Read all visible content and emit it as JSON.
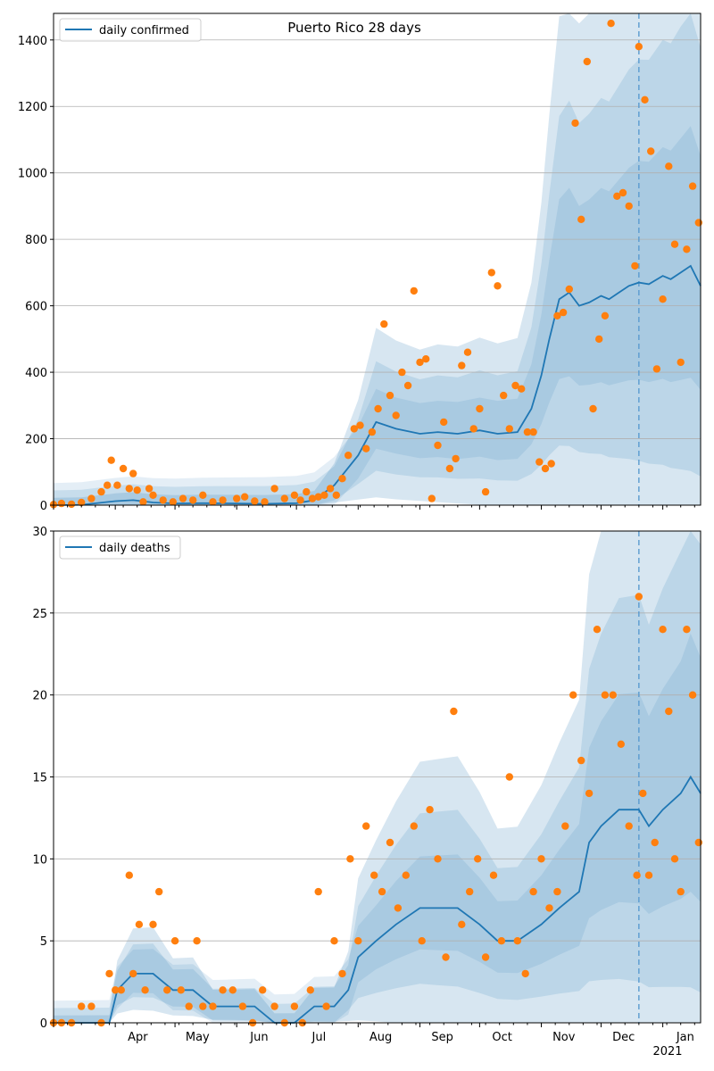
{
  "figure": {
    "title": "Puerto Rico 28 days"
  },
  "chart_data": [
    {
      "type": "line",
      "title": "Puerto Rico 28 days",
      "xlabel": "",
      "ylabel": "",
      "x_range": [
        "2020-03-01",
        "2021-01-20"
      ],
      "ylim": [
        0,
        1480
      ],
      "yticks": [
        0,
        200,
        400,
        600,
        800,
        1000,
        1200,
        1400
      ],
      "grid": "horizontal",
      "legend_position": "top-left",
      "forecast_start": "2020-12-20",
      "series": [
        {
          "name": "daily confirmed",
          "style": "line",
          "color": "#1f77b4",
          "x": [
            "2020-03-01",
            "2020-03-15",
            "2020-04-01",
            "2020-04-10",
            "2020-04-20",
            "2020-05-01",
            "2020-05-15",
            "2020-06-01",
            "2020-06-15",
            "2020-07-01",
            "2020-07-10",
            "2020-07-20",
            "2020-08-01",
            "2020-08-10",
            "2020-08-20",
            "2020-09-01",
            "2020-09-10",
            "2020-09-20",
            "2020-10-01",
            "2020-10-10",
            "2020-10-20",
            "2020-10-27",
            "2020-11-01",
            "2020-11-05",
            "2020-11-10",
            "2020-11-15",
            "2020-11-20",
            "2020-11-25",
            "2020-12-01",
            "2020-12-05",
            "2020-12-10",
            "2020-12-15",
            "2020-12-20",
            "2020-12-25",
            "2021-01-01",
            "2021-01-05",
            "2021-01-10",
            "2021-01-15",
            "2021-01-20"
          ],
          "values": [
            0,
            1,
            12,
            15,
            8,
            5,
            6,
            5,
            4,
            6,
            15,
            60,
            150,
            250,
            230,
            215,
            220,
            215,
            225,
            215,
            220,
            290,
            390,
            500,
            620,
            640,
            600,
            610,
            630,
            620,
            640,
            660,
            670,
            665,
            690,
            680,
            700,
            720,
            660
          ]
        },
        {
          "name": "",
          "style": "scatter",
          "color": "#ff7f0e",
          "x": [
            "2020-03-01",
            "2020-03-05",
            "2020-03-10",
            "2020-03-15",
            "2020-03-20",
            "2020-03-25",
            "2020-03-28",
            "2020-03-30",
            "2020-04-02",
            "2020-04-05",
            "2020-04-08",
            "2020-04-10",
            "2020-04-12",
            "2020-04-15",
            "2020-04-18",
            "2020-04-20",
            "2020-04-25",
            "2020-04-30",
            "2020-05-05",
            "2020-05-10",
            "2020-05-15",
            "2020-05-20",
            "2020-05-25",
            "2020-06-01",
            "2020-06-05",
            "2020-06-10",
            "2020-06-15",
            "2020-06-20",
            "2020-06-25",
            "2020-06-30",
            "2020-07-03",
            "2020-07-06",
            "2020-07-09",
            "2020-07-12",
            "2020-07-15",
            "2020-07-18",
            "2020-07-21",
            "2020-07-24",
            "2020-07-27",
            "2020-07-30",
            "2020-08-02",
            "2020-08-05",
            "2020-08-08",
            "2020-08-11",
            "2020-08-14",
            "2020-08-17",
            "2020-08-20",
            "2020-08-23",
            "2020-08-26",
            "2020-08-29",
            "2020-09-01",
            "2020-09-04",
            "2020-09-07",
            "2020-09-10",
            "2020-09-13",
            "2020-09-16",
            "2020-09-19",
            "2020-09-22",
            "2020-09-25",
            "2020-09-28",
            "2020-10-01",
            "2020-10-04",
            "2020-10-07",
            "2020-10-10",
            "2020-10-13",
            "2020-10-16",
            "2020-10-19",
            "2020-10-22",
            "2020-10-25",
            "2020-10-28",
            "2020-10-31",
            "2020-11-03",
            "2020-11-06",
            "2020-11-09",
            "2020-11-12",
            "2020-11-15",
            "2020-11-18",
            "2020-11-21",
            "2020-11-24",
            "2020-11-27",
            "2020-11-30",
            "2020-12-03",
            "2020-12-06",
            "2020-12-09",
            "2020-12-12",
            "2020-12-15",
            "2020-12-18",
            "2020-12-20",
            "2020-12-23",
            "2020-12-26",
            "2020-12-29",
            "2021-01-01",
            "2021-01-04",
            "2021-01-07",
            "2021-01-10",
            "2021-01-13",
            "2021-01-16",
            "2021-01-19"
          ],
          "values": [
            2,
            5,
            3,
            8,
            20,
            40,
            60,
            135,
            60,
            110,
            50,
            95,
            45,
            10,
            50,
            30,
            15,
            10,
            20,
            15,
            30,
            10,
            15,
            20,
            25,
            12,
            10,
            50,
            20,
            30,
            15,
            40,
            20,
            25,
            30,
            50,
            30,
            80,
            150,
            230,
            240,
            170,
            220,
            290,
            545,
            330,
            270,
            400,
            360,
            645,
            430,
            440,
            20,
            180,
            250,
            110,
            140,
            420,
            460,
            230,
            290,
            40,
            700,
            660,
            330,
            230,
            360,
            350,
            220,
            220,
            130,
            110,
            125,
            570,
            580,
            650,
            1150,
            860,
            1335,
            290,
            500,
            570,
            1450,
            930,
            940,
            900,
            720,
            1380,
            1220,
            1065,
            410,
            620,
            1020,
            785,
            430,
            770,
            960,
            850
          ]
        }
      ]
    },
    {
      "type": "line",
      "title": "",
      "xlabel": "",
      "ylabel": "",
      "x_range": [
        "2020-03-01",
        "2021-01-20"
      ],
      "ylim": [
        0,
        30
      ],
      "yticks": [
        0,
        5,
        10,
        15,
        20,
        25,
        30
      ],
      "grid": "horizontal",
      "legend_position": "top-left",
      "forecast_start": "2020-12-20",
      "xtick_labels": [
        "Apr",
        "May",
        "Jun",
        "Jul",
        "Aug",
        "Sep",
        "Oct",
        "Nov",
        "Dec",
        "Jan"
      ],
      "year_label": "2021",
      "series": [
        {
          "name": "daily deaths",
          "style": "line",
          "color": "#1f77b4",
          "x": [
            "2020-03-01",
            "2020-03-29",
            "2020-04-02",
            "2020-04-10",
            "2020-04-20",
            "2020-04-30",
            "2020-05-10",
            "2020-05-20",
            "2020-06-01",
            "2020-06-10",
            "2020-06-20",
            "2020-06-30",
            "2020-07-10",
            "2020-07-20",
            "2020-07-27",
            "2020-08-01",
            "2020-08-10",
            "2020-08-20",
            "2020-09-01",
            "2020-09-10",
            "2020-09-20",
            "2020-10-01",
            "2020-10-10",
            "2020-10-20",
            "2020-11-01",
            "2020-11-10",
            "2020-11-20",
            "2020-11-25",
            "2020-12-01",
            "2020-12-10",
            "2020-12-20",
            "2020-12-25",
            "2021-01-01",
            "2021-01-10",
            "2021-01-15",
            "2021-01-20"
          ],
          "values": [
            0,
            0,
            2,
            3,
            3,
            2,
            2,
            1,
            1,
            1,
            0,
            0,
            1,
            1,
            2,
            4,
            5,
            6,
            7,
            7,
            7,
            6,
            5,
            5,
            6,
            7,
            8,
            11,
            12,
            13,
            13,
            12,
            13,
            14,
            15,
            14
          ]
        },
        {
          "name": "",
          "style": "scatter",
          "color": "#ff7f0e",
          "x": [
            "2020-03-01",
            "2020-03-05",
            "2020-03-10",
            "2020-03-15",
            "2020-03-20",
            "2020-03-25",
            "2020-03-29",
            "2020-04-01",
            "2020-04-04",
            "2020-04-08",
            "2020-04-10",
            "2020-04-13",
            "2020-04-16",
            "2020-04-20",
            "2020-04-23",
            "2020-04-27",
            "2020-05-01",
            "2020-05-04",
            "2020-05-08",
            "2020-05-12",
            "2020-05-15",
            "2020-05-20",
            "2020-05-25",
            "2020-05-30",
            "2020-06-04",
            "2020-06-09",
            "2020-06-14",
            "2020-06-20",
            "2020-06-25",
            "2020-06-30",
            "2020-07-04",
            "2020-07-08",
            "2020-07-12",
            "2020-07-16",
            "2020-07-20",
            "2020-07-24",
            "2020-07-28",
            "2020-08-01",
            "2020-08-05",
            "2020-08-09",
            "2020-08-13",
            "2020-08-17",
            "2020-08-21",
            "2020-08-25",
            "2020-08-29",
            "2020-09-02",
            "2020-09-06",
            "2020-09-10",
            "2020-09-14",
            "2020-09-18",
            "2020-09-22",
            "2020-09-26",
            "2020-09-30",
            "2020-10-04",
            "2020-10-08",
            "2020-10-12",
            "2020-10-16",
            "2020-10-20",
            "2020-10-24",
            "2020-10-28",
            "2020-11-01",
            "2020-11-05",
            "2020-11-09",
            "2020-11-13",
            "2020-11-17",
            "2020-11-21",
            "2020-11-25",
            "2020-11-29",
            "2020-12-03",
            "2020-12-07",
            "2020-12-11",
            "2020-12-15",
            "2020-12-19",
            "2020-12-20",
            "2020-12-22",
            "2020-12-25",
            "2020-12-28",
            "2021-01-01",
            "2021-01-04",
            "2021-01-07",
            "2021-01-10",
            "2021-01-13",
            "2021-01-16",
            "2021-01-19"
          ],
          "values": [
            0,
            0,
            0,
            1,
            1,
            0,
            3,
            2,
            2,
            9,
            3,
            6,
            2,
            6,
            8,
            2,
            5,
            2,
            1,
            5,
            1,
            1,
            2,
            2,
            1,
            0,
            2,
            1,
            0,
            1,
            0,
            2,
            8,
            1,
            5,
            3,
            10,
            5,
            12,
            9,
            8,
            11,
            7,
            9,
            12,
            5,
            13,
            10,
            4,
            19,
            6,
            8,
            10,
            4,
            9,
            5,
            15,
            5,
            3,
            8,
            10,
            7,
            8,
            12,
            20,
            16,
            14,
            24,
            20,
            20,
            17,
            12,
            9,
            26,
            14,
            9,
            11,
            24,
            19,
            10,
            8,
            24,
            20,
            11
          ]
        }
      ]
    }
  ]
}
